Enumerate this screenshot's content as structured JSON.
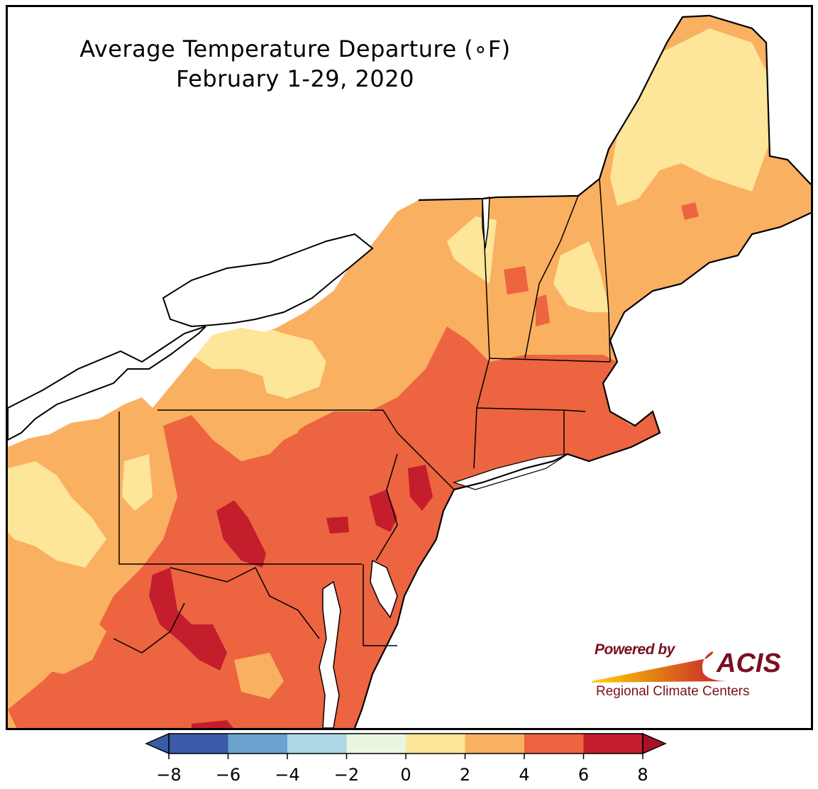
{
  "title": {
    "line1": "Average Temperature Departure (∘F)",
    "line2": "February 1-29, 2020"
  },
  "legend": {
    "bins": [
      {
        "min": -8,
        "max": -6,
        "color": "#3b5ba8"
      },
      {
        "min": -6,
        "max": -4,
        "color": "#6aa3cd"
      },
      {
        "min": -4,
        "max": -2,
        "color": "#acd8e6"
      },
      {
        "min": -2,
        "max": 0,
        "color": "#e8f5e0"
      },
      {
        "min": 0,
        "max": 2,
        "color": "#fde59a"
      },
      {
        "min": 2,
        "max": 4,
        "color": "#f9b061"
      },
      {
        "min": 4,
        "max": 6,
        "color": "#ec6440"
      },
      {
        "min": 6,
        "max": 8,
        "color": "#c41d2c"
      }
    ],
    "under_color": "#3b5ba8",
    "over_color": "#a8102b",
    "tick_labels": [
      "−8",
      "−6",
      "−4",
      "−2",
      "0",
      "2",
      "4",
      "6",
      "8"
    ]
  },
  "logo": {
    "powered_by": "Powered by",
    "acis": "ACIS",
    "regional": "Regional Climate Centers",
    "colors": {
      "text": "#7a1020",
      "flame_start": "#ffd200",
      "flame_end": "#c41d2c"
    }
  },
  "map": {
    "water_color": "#ffffff",
    "state_border_color": "#000000",
    "county_line_color": "#a0a0a0"
  }
}
